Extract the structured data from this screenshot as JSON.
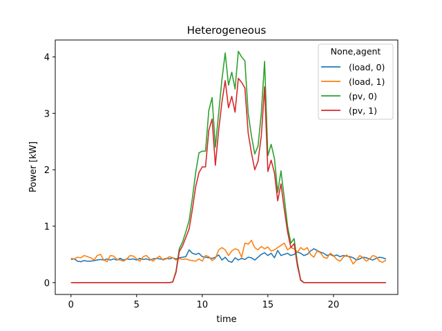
{
  "chart_data": {
    "type": "line",
    "title": "Heterogeneous",
    "xlabel": "time",
    "ylabel": "Power [kW]",
    "xlim": [
      -1.2,
      24.9
    ],
    "ylim": [
      -0.21,
      4.3
    ],
    "xticks": [
      0,
      5,
      10,
      15,
      20
    ],
    "yticks": [
      0,
      1,
      2,
      3,
      4
    ],
    "grid": false,
    "legend": {
      "title": "None,agent",
      "placement": "top-right"
    },
    "x_start": 0,
    "x_step": 0.25,
    "series": [
      {
        "name": "(load, 0)",
        "color": "#1f77b4",
        "values": [
          0.41,
          0.42,
          0.38,
          0.37,
          0.39,
          0.38,
          0.38,
          0.39,
          0.4,
          0.41,
          0.4,
          0.42,
          0.4,
          0.42,
          0.4,
          0.43,
          0.4,
          0.42,
          0.41,
          0.42,
          0.4,
          0.43,
          0.41,
          0.42,
          0.4,
          0.42,
          0.43,
          0.42,
          0.41,
          0.43,
          0.42,
          0.44,
          0.42,
          0.44,
          0.45,
          0.46,
          0.58,
          0.52,
          0.5,
          0.52,
          0.46,
          0.45,
          0.44,
          0.43,
          0.45,
          0.49,
          0.4,
          0.45,
          0.38,
          0.36,
          0.44,
          0.4,
          0.43,
          0.41,
          0.45,
          0.44,
          0.4,
          0.45,
          0.5,
          0.53,
          0.48,
          0.52,
          0.44,
          0.57,
          0.48,
          0.5,
          0.52,
          0.48,
          0.5,
          0.54,
          0.52,
          0.48,
          0.5,
          0.56,
          0.6,
          0.57,
          0.54,
          0.52,
          0.48,
          0.5,
          0.47,
          0.49,
          0.46,
          0.48,
          0.47,
          0.46,
          0.44,
          0.4,
          0.42,
          0.45,
          0.44,
          0.42,
          0.4,
          0.43,
          0.45,
          0.44,
          0.42
        ]
      },
      {
        "name": "(load, 1)",
        "color": "#ff7f0e",
        "values": [
          0.43,
          0.42,
          0.45,
          0.44,
          0.48,
          0.46,
          0.44,
          0.4,
          0.48,
          0.5,
          0.4,
          0.37,
          0.48,
          0.47,
          0.41,
          0.4,
          0.38,
          0.42,
          0.48,
          0.47,
          0.42,
          0.38,
          0.46,
          0.48,
          0.42,
          0.38,
          0.43,
          0.47,
          0.4,
          0.42,
          0.46,
          0.44,
          0.4,
          0.43,
          0.41,
          0.42,
          0.4,
          0.39,
          0.38,
          0.42,
          0.38,
          0.48,
          0.46,
          0.39,
          0.43,
          0.58,
          0.62,
          0.58,
          0.48,
          0.56,
          0.6,
          0.58,
          0.45,
          0.7,
          0.68,
          0.75,
          0.62,
          0.58,
          0.64,
          0.6,
          0.63,
          0.56,
          0.58,
          0.62,
          0.66,
          0.7,
          0.58,
          0.62,
          0.6,
          0.54,
          0.62,
          0.58,
          0.62,
          0.5,
          0.45,
          0.56,
          0.53,
          0.45,
          0.43,
          0.52,
          0.48,
          0.41,
          0.38,
          0.45,
          0.49,
          0.44,
          0.33,
          0.4,
          0.48,
          0.44,
          0.38,
          0.42,
          0.48,
          0.46,
          0.38,
          0.36,
          0.4
        ]
      },
      {
        "name": "(pv, 0)",
        "color": "#2ca02c",
        "values": [
          0,
          0,
          0,
          0,
          0,
          0,
          0,
          0,
          0,
          0,
          0,
          0,
          0,
          0,
          0,
          0,
          0,
          0,
          0,
          0,
          0,
          0,
          0,
          0,
          0,
          0,
          0,
          0,
          0,
          0,
          0,
          0.01,
          0.2,
          0.6,
          0.72,
          0.9,
          1.1,
          1.5,
          1.95,
          2.3,
          2.33,
          2.33,
          3.05,
          3.28,
          2.4,
          3.0,
          3.6,
          4.07,
          3.5,
          3.73,
          3.43,
          4.1,
          4.0,
          3.93,
          3.0,
          2.6,
          2.28,
          2.42,
          3.0,
          3.92,
          2.25,
          2.45,
          2.2,
          1.6,
          1.98,
          1.5,
          1.0,
          0.7,
          0.78,
          0.35,
          0.05,
          0,
          0,
          0,
          0,
          0,
          0,
          0,
          0,
          0,
          0,
          0,
          0,
          0,
          0,
          0,
          0,
          0,
          0,
          0,
          0,
          0,
          0,
          0,
          0,
          0,
          0
        ]
      },
      {
        "name": "(pv, 1)",
        "color": "#d62728",
        "values": [
          0,
          0,
          0,
          0,
          0,
          0,
          0,
          0,
          0,
          0,
          0,
          0,
          0,
          0,
          0,
          0,
          0,
          0,
          0,
          0,
          0,
          0,
          0,
          0,
          0,
          0,
          0,
          0,
          0,
          0,
          0,
          0.01,
          0.18,
          0.55,
          0.65,
          0.8,
          0.95,
          1.3,
          1.7,
          1.95,
          2.05,
          2.05,
          2.7,
          2.9,
          2.08,
          2.7,
          3.2,
          3.58,
          3.1,
          3.3,
          3.02,
          3.62,
          3.55,
          3.45,
          2.65,
          2.3,
          2.0,
          2.15,
          2.6,
          3.47,
          1.97,
          2.17,
          1.95,
          1.45,
          1.75,
          1.3,
          0.9,
          0.62,
          0.69,
          0.3,
          0.04,
          0,
          0,
          0,
          0,
          0,
          0,
          0,
          0,
          0,
          0,
          0,
          0,
          0,
          0,
          0,
          0,
          0,
          0,
          0,
          0,
          0,
          0,
          0,
          0,
          0,
          0
        ]
      }
    ]
  }
}
